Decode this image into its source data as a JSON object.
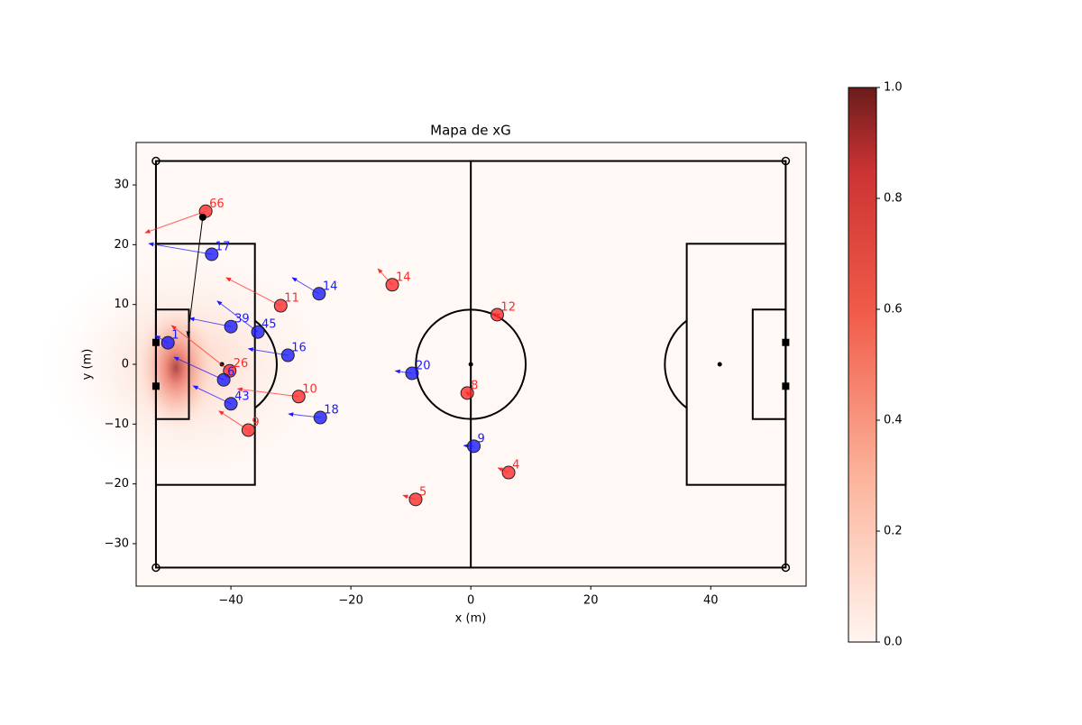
{
  "chart_data": {
    "type": "scatter",
    "title": "Mapa de xG",
    "xlabel": "x (m)",
    "ylabel": "y (m)",
    "xlim": [
      -55.8,
      55.9
    ],
    "ylim": [
      -37.1,
      37.1
    ],
    "xticks": [
      {
        "value": -40,
        "label": "−40"
      },
      {
        "value": -20,
        "label": "−20"
      },
      0,
      20,
      40
    ],
    "yticks": [
      {
        "value": -30,
        "label": "−30"
      },
      {
        "value": -20,
        "label": "−20"
      },
      {
        "value": -10,
        "label": "−10"
      },
      0,
      10,
      20,
      30
    ],
    "series": [
      {
        "color": "#ff2a2a",
        "labels": [
          "66",
          "11",
          "14",
          "12",
          "26",
          "10",
          "8",
          "9",
          "4",
          "5"
        ],
        "x": [
          -44.2,
          -31.7,
          -13.1,
          4.4,
          -40.2,
          -28.7,
          -0.6,
          -37.1,
          6.3,
          -9.2
        ],
        "y": [
          25.6,
          9.8,
          13.3,
          8.3,
          -1.1,
          -5.4,
          -4.8,
          -11.0,
          -18.1,
          -22.6
        ],
        "arrow_x": [
          -54.3,
          -40.8,
          -15.5,
          4.0,
          -49.9,
          -38.9,
          -0.9,
          -42.0,
          4.5,
          -11.3
        ],
        "arrow_y": [
          22.0,
          14.5,
          16.0,
          8.5,
          6.5,
          -4.1,
          -4.6,
          -7.8,
          -17.3,
          -21.9
        ]
      },
      {
        "color": "#1a1aff",
        "labels": [
          "17",
          "14",
          "39",
          "45",
          "1",
          "16",
          "6",
          "43",
          "20",
          "18",
          "9"
        ],
        "x": [
          -43.2,
          -25.3,
          -40.0,
          -35.5,
          -50.5,
          -30.5,
          -41.2,
          -40.0,
          -9.8,
          -25.1,
          0.5
        ],
        "y": [
          18.4,
          11.8,
          6.3,
          5.4,
          3.6,
          1.5,
          -2.6,
          -6.6,
          -1.5,
          -8.9,
          -13.7
        ],
        "arrow_x": [
          -53.7,
          -29.8,
          -46.9,
          -42.3,
          -52.6,
          -37.1,
          -49.5,
          -46.3,
          -12.6,
          -30.4,
          -1.2
        ],
        "arrow_y": [
          20.2,
          14.5,
          7.7,
          10.6,
          4.8,
          2.6,
          1.2,
          -3.6,
          -1.1,
          -8.3,
          -13.6
        ]
      }
    ],
    "ball": {
      "color": "#000000",
      "x": -44.7,
      "y": 24.6,
      "arrow_x": -47.2,
      "arrow_y": 4.7
    },
    "colorbar": {
      "lim": [
        0,
        1
      ],
      "ticks": [
        {
          "value": 0,
          "label": "0.0"
        },
        {
          "value": 0.2,
          "label": "0.2"
        },
        {
          "value": 0.4,
          "label": "0.4"
        },
        {
          "value": 0.6,
          "label": "0.6"
        },
        {
          "value": 0.8,
          "label": "0.8"
        },
        {
          "value": 1,
          "label": "1.0"
        }
      ]
    }
  }
}
